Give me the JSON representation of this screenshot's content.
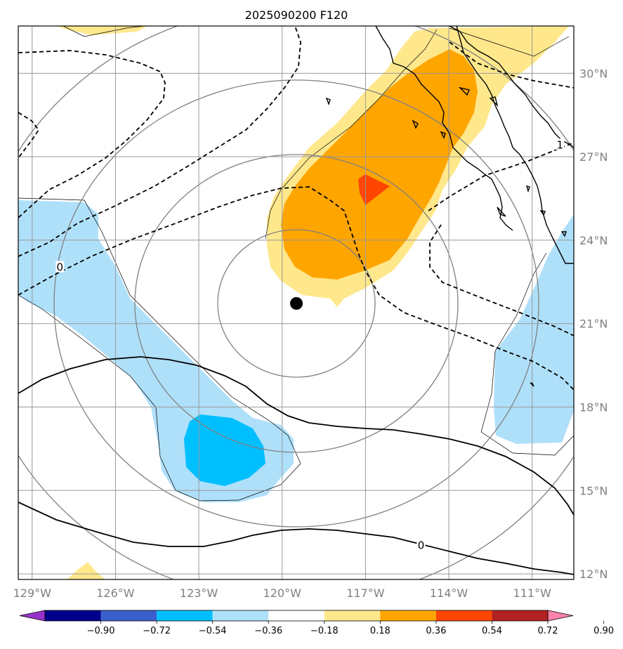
{
  "title": "2025090200 F120",
  "map": {
    "lon_ticks": [
      {
        "value": -129,
        "label": "129°W"
      },
      {
        "value": -126,
        "label": "126°W"
      },
      {
        "value": -123,
        "label": "123°W"
      },
      {
        "value": -120,
        "label": "120°W"
      },
      {
        "value": -117,
        "label": "117°W"
      },
      {
        "value": -114,
        "label": "114°W"
      },
      {
        "value": -111,
        "label": "111°W"
      }
    ],
    "lat_ticks": [
      {
        "value": 30,
        "label": "30°N"
      },
      {
        "value": 27,
        "label": "27°N"
      },
      {
        "value": 24,
        "label": "24°N"
      },
      {
        "value": 21,
        "label": "21°N"
      },
      {
        "value": 18,
        "label": "18°N"
      },
      {
        "value": 15,
        "label": "15°N"
      },
      {
        "value": 12,
        "label": "12°N"
      }
    ],
    "extent": {
      "lon_min": -129.5,
      "lon_max": -109.5,
      "lat_min": 11.8,
      "lat_max": 31.7
    },
    "storm_center": {
      "lon": -119.5,
      "lat": 21.7
    },
    "contour_labels": [
      {
        "text": "0",
        "lon": -128.0,
        "lat": 23.0
      },
      {
        "text": "1",
        "lon": -110.0,
        "lat": 27.4
      },
      {
        "text": "0",
        "lon": -115.0,
        "lat": 13.0
      }
    ]
  },
  "colorbar": {
    "ticks": [
      "−0.90",
      "−0.72",
      "−0.54",
      "−0.36",
      "−0.18",
      "0.18",
      "0.36",
      "0.54",
      "0.72",
      "0.90"
    ],
    "colors": [
      "#9932cc",
      "#00008b",
      "#3a5fcd",
      "#00bfff",
      "#afe0fa",
      "#ffffff",
      "#ffe88c",
      "#ffa500",
      "#ff4500",
      "#b22222",
      "#ff82ab"
    ]
  }
}
